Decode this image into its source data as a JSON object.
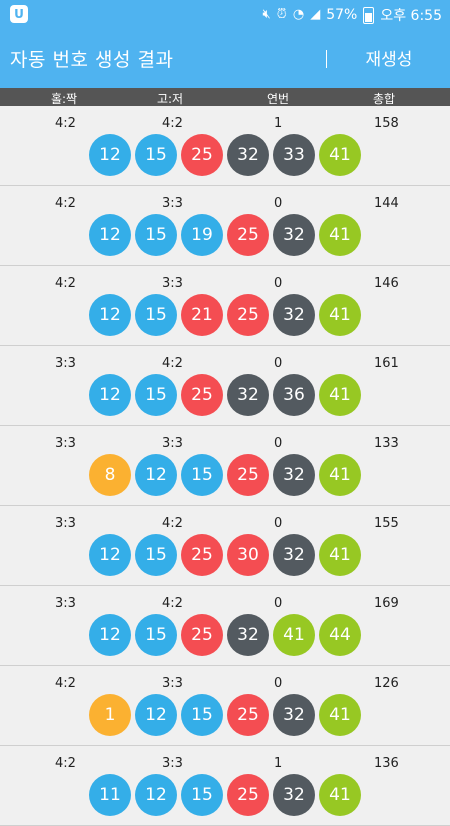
{
  "status": {
    "battery": "57%",
    "time": "오후 6:55",
    "icons": [
      "mute-icon",
      "alarm-icon",
      "wifi-icon",
      "signal-icon",
      "battery-icon"
    ]
  },
  "appbar": {
    "title": "자동 번호 생성 결과",
    "regenerate_label": "재생성"
  },
  "columns": {
    "odd_even": "홀:짝",
    "high_low": "고:저",
    "consecutive": "연번",
    "total": "총합"
  },
  "colors": {
    "yellow": "#fbb131",
    "blue": "#34aee8",
    "red": "#f44d52",
    "gray": "#535a60",
    "green": "#97c823",
    "accent": "#4fb3f0"
  },
  "rows": [
    {
      "odd_even": "4:2",
      "high_low": "4:2",
      "consecutive": "1",
      "total": "158",
      "numbers": [
        "12",
        "15",
        "25",
        "32",
        "33",
        "41"
      ],
      "colors": [
        "blue",
        "blue",
        "red",
        "gray",
        "gray",
        "green"
      ]
    },
    {
      "odd_even": "4:2",
      "high_low": "3:3",
      "consecutive": "0",
      "total": "144",
      "numbers": [
        "12",
        "15",
        "19",
        "25",
        "32",
        "41"
      ],
      "colors": [
        "blue",
        "blue",
        "blue",
        "red",
        "gray",
        "green"
      ]
    },
    {
      "odd_even": "4:2",
      "high_low": "3:3",
      "consecutive": "0",
      "total": "146",
      "numbers": [
        "12",
        "15",
        "21",
        "25",
        "32",
        "41"
      ],
      "colors": [
        "blue",
        "blue",
        "red",
        "red",
        "gray",
        "green"
      ]
    },
    {
      "odd_even": "3:3",
      "high_low": "4:2",
      "consecutive": "0",
      "total": "161",
      "numbers": [
        "12",
        "15",
        "25",
        "32",
        "36",
        "41"
      ],
      "colors": [
        "blue",
        "blue",
        "red",
        "gray",
        "gray",
        "green"
      ]
    },
    {
      "odd_even": "3:3",
      "high_low": "3:3",
      "consecutive": "0",
      "total": "133",
      "numbers": [
        "8",
        "12",
        "15",
        "25",
        "32",
        "41"
      ],
      "colors": [
        "yellow",
        "blue",
        "blue",
        "red",
        "gray",
        "green"
      ]
    },
    {
      "odd_even": "3:3",
      "high_low": "4:2",
      "consecutive": "0",
      "total": "155",
      "numbers": [
        "12",
        "15",
        "25",
        "30",
        "32",
        "41"
      ],
      "colors": [
        "blue",
        "blue",
        "red",
        "red",
        "gray",
        "green"
      ]
    },
    {
      "odd_even": "3:3",
      "high_low": "4:2",
      "consecutive": "0",
      "total": "169",
      "numbers": [
        "12",
        "15",
        "25",
        "32",
        "41",
        "44"
      ],
      "colors": [
        "blue",
        "blue",
        "red",
        "gray",
        "green",
        "green"
      ]
    },
    {
      "odd_even": "4:2",
      "high_low": "3:3",
      "consecutive": "0",
      "total": "126",
      "numbers": [
        "1",
        "12",
        "15",
        "25",
        "32",
        "41"
      ],
      "colors": [
        "yellow",
        "blue",
        "blue",
        "red",
        "gray",
        "green"
      ]
    },
    {
      "odd_even": "4:2",
      "high_low": "3:3",
      "consecutive": "1",
      "total": "136",
      "numbers": [
        "11",
        "12",
        "15",
        "25",
        "32",
        "41"
      ],
      "colors": [
        "blue",
        "blue",
        "blue",
        "red",
        "gray",
        "green"
      ]
    }
  ]
}
